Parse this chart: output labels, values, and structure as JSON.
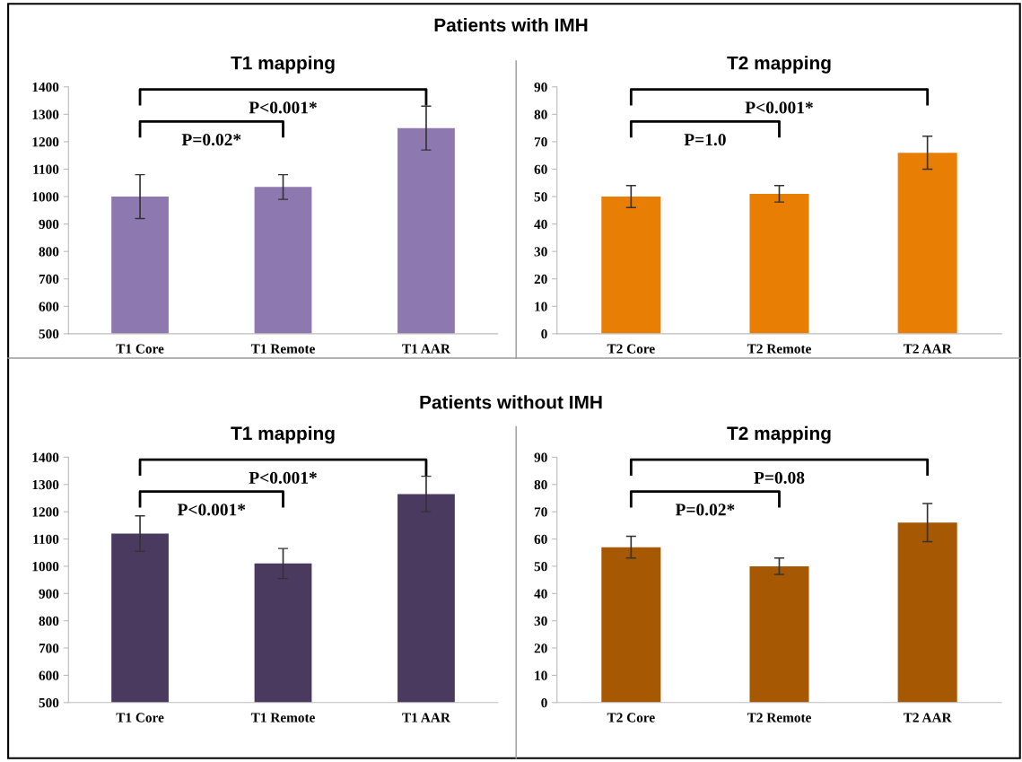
{
  "chart_data": [
    {
      "type": "bar",
      "subtitle": "Patients with IMH",
      "title": "T1 mapping",
      "categories": [
        "T1 Core",
        "T1 Remote",
        "T1 AAR"
      ],
      "values": [
        1000,
        1035,
        1250
      ],
      "errors": [
        80,
        45,
        80
      ],
      "color": "#8e78b0",
      "ylim": [
        500,
        1400
      ],
      "yticks": [
        500,
        600,
        700,
        800,
        900,
        1000,
        1100,
        1200,
        1300,
        1400
      ],
      "grid": false,
      "annotations": [
        "P=0.02*",
        "P<0.001*"
      ]
    },
    {
      "type": "bar",
      "title": "T2 mapping",
      "categories": [
        "T2 Core",
        "T2 Remote",
        "T2 AAR"
      ],
      "values": [
        50,
        51,
        66
      ],
      "errors": [
        4,
        3,
        6
      ],
      "color": "#e87e04",
      "ylim": [
        0,
        90
      ],
      "yticks": [
        0,
        10,
        20,
        30,
        40,
        50,
        60,
        70,
        80,
        90
      ],
      "grid": false,
      "annotations": [
        "P=1.0",
        "P<0.001*"
      ]
    },
    {
      "type": "bar",
      "subtitle": "Patients without IMH",
      "title": "T1 mapping",
      "categories": [
        "T1 Core",
        "T1 Remote",
        "T1 AAR"
      ],
      "values": [
        1120,
        1010,
        1265
      ],
      "errors": [
        65,
        55,
        65
      ],
      "color": "#4a3a60",
      "ylim": [
        500,
        1400
      ],
      "yticks": [
        500,
        600,
        700,
        800,
        900,
        1000,
        1100,
        1200,
        1300,
        1400
      ],
      "grid": false,
      "annotations": [
        "P<0.001*",
        "P<0.001*"
      ]
    },
    {
      "type": "bar",
      "title": "T2 mapping",
      "categories": [
        "T2 Core",
        "T2 Remote",
        "T2 AAR"
      ],
      "values": [
        57,
        50,
        66
      ],
      "errors": [
        4,
        3,
        7
      ],
      "color": "#a65802",
      "ylim": [
        0,
        90
      ],
      "yticks": [
        0,
        10,
        20,
        30,
        40,
        50,
        60,
        70,
        80,
        90
      ],
      "grid": false,
      "annotations": [
        "P=0.02*",
        "P=0.08"
      ]
    }
  ]
}
